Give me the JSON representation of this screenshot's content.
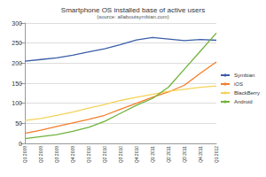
{
  "chart_data": {
    "type": "line",
    "title": "Smartphone OS installed base of active users",
    "subtitle": "(source: allaboutsymbian.com)",
    "categories": [
      "Q1 2009",
      "Q2 2009",
      "Q3 2009",
      "Q4 2009",
      "Q1 2010",
      "Q2 2010",
      "Q3 2010",
      "Q4 2010",
      "Q1 2011",
      "Q2 2011",
      "Q3 2011",
      "Q4 2011",
      "Q1 2012"
    ],
    "series": [
      {
        "name": "Symbian",
        "color": "#3a5da8",
        "values": [
          205,
          209,
          213,
          220,
          228,
          236,
          246,
          258,
          264,
          260,
          256,
          259,
          257
        ]
      },
      {
        "name": "iOS",
        "color": "#f57d2a",
        "values": [
          25,
          33,
          42,
          51,
          60,
          70,
          85,
          100,
          115,
          128,
          145,
          175,
          203
        ]
      },
      {
        "name": "BlackBerry",
        "color": "#f5d25a",
        "values": [
          57,
          62,
          70,
          78,
          88,
          97,
          107,
          115,
          122,
          130,
          135,
          140,
          143
        ]
      },
      {
        "name": "Android",
        "color": "#6fb33a",
        "values": [
          12,
          17,
          22,
          30,
          40,
          55,
          75,
          95,
          112,
          140,
          185,
          230,
          275
        ]
      }
    ],
    "ylim": [
      0,
      300
    ],
    "yticks": [
      0,
      50,
      100,
      150,
      200,
      250,
      300
    ],
    "grid": true,
    "legend": "right"
  }
}
